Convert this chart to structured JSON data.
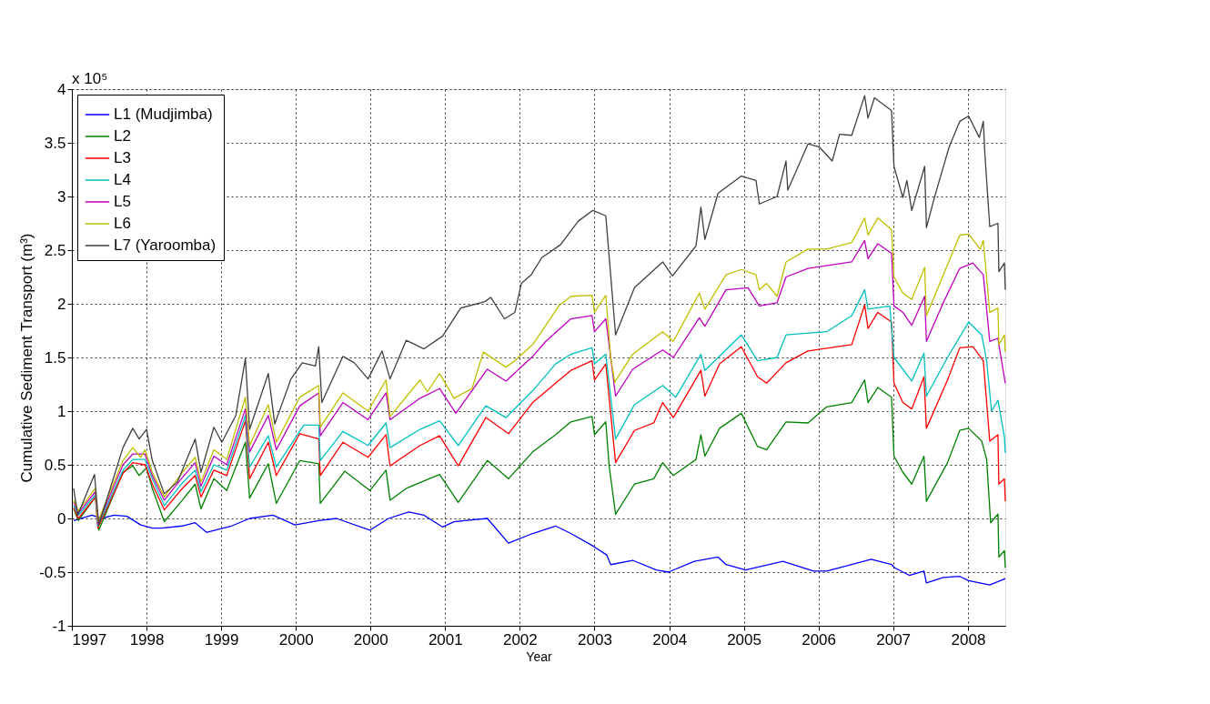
{
  "chart_data": {
    "type": "line",
    "xlabel": "Year",
    "ylabel": "Cumulative Sediment Transport (m³)",
    "annotations": [
      "x 10⁵"
    ],
    "xlim": [
      "1997-04-13",
      "2008-10-13"
    ],
    "xticks": [
      {
        "value": "1997-04-13",
        "label": "1997"
      },
      {
        "value": "1998-03-15",
        "label": "1998"
      },
      {
        "value": "1999-02-14",
        "label": "1999"
      },
      {
        "value": "2000-01-16",
        "label": "2000"
      },
      {
        "value": "2000-12-17",
        "label": "2000"
      },
      {
        "value": "2001-11-18",
        "label": "2001"
      },
      {
        "value": "2002-10-20",
        "label": "2002"
      },
      {
        "value": "2003-09-21",
        "label": "2003"
      },
      {
        "value": "2004-08-23",
        "label": "2004"
      },
      {
        "value": "2005-07-24",
        "label": "2005"
      },
      {
        "value": "2006-06-25",
        "label": "2006"
      },
      {
        "value": "2007-05-27",
        "label": "2007"
      },
      {
        "value": "2008-04-28",
        "label": "2008"
      }
    ],
    "ylim": [
      -1,
      4
    ],
    "yticks": [
      -1,
      -0.5,
      0,
      0.5,
      1,
      1.5,
      2,
      2.5,
      3,
      3.5,
      4
    ],
    "grid": true,
    "legend": "top left",
    "marker": "none",
    "line_style": "solid",
    "series": [
      {
        "name": "L1 (Mudjimba)",
        "color": "#0000ff",
        "x": [
          "1997-04-21",
          "1997-07-13",
          "1997-08-23",
          "1997-10-20",
          "1997-12-17",
          "1998-02-17",
          "1998-04-10",
          "1998-05-23",
          "1998-08-23",
          "1998-10-20",
          "1998-12-10",
          "1999-02-03",
          "1999-04-02",
          "1999-06-22",
          "1999-10-05",
          "2000-01-12",
          "2000-04-28",
          "2000-07-17",
          "2000-12-14",
          "2001-03-08",
          "2001-06-07",
          "2001-08-15",
          "2001-11-07",
          "2001-12-28",
          "2002-05-27",
          "2002-08-30",
          "2002-12-17",
          "2003-03-30",
          "2003-06-07",
          "2003-09-17",
          "2003-11-15",
          "2003-12-03",
          "2004-03-11",
          "2004-06-25",
          "2004-08-19",
          "2004-12-14",
          "2005-03-30",
          "2005-05-05",
          "2005-08-01",
          "2006-01-16",
          "2006-06-03",
          "2006-08-01",
          "2006-11-22",
          "2007-02-17",
          "2007-05-20",
          "2007-06-03",
          "2007-08-08",
          "2007-10-13",
          "2007-10-24",
          "2008-01-08",
          "2008-03-22",
          "2008-05-01",
          "2008-08-04",
          "2008-10-13"
        ],
        "values": [
          -0.02,
          0.03,
          0.0,
          0.03,
          0.02,
          -0.06,
          -0.09,
          -0.09,
          -0.07,
          -0.04,
          -0.13,
          -0.1,
          -0.07,
          0.0,
          0.03,
          -0.06,
          -0.02,
          0.0,
          -0.11,
          0.0,
          0.06,
          0.03,
          -0.08,
          -0.03,
          0.0,
          -0.23,
          -0.14,
          -0.07,
          -0.14,
          -0.26,
          -0.34,
          -0.43,
          -0.39,
          -0.48,
          -0.5,
          -0.4,
          -0.36,
          -0.43,
          -0.48,
          -0.4,
          -0.49,
          -0.49,
          -0.43,
          -0.38,
          -0.43,
          -0.46,
          -0.53,
          -0.49,
          -0.6,
          -0.55,
          -0.54,
          -0.58,
          -0.62,
          -0.56
        ]
      },
      {
        "name": "L2",
        "color": "#008000",
        "x": [
          "1997-04-21",
          "1997-05-12",
          "1997-07-28",
          "1997-08-12",
          "1997-11-29",
          "1998-01-12",
          "1998-02-10",
          "1998-03-15",
          "1998-04-10",
          "1998-06-03",
          "1998-08-23",
          "1998-10-20",
          "1998-11-15",
          "1999-01-12",
          "1999-03-11",
          "1999-06-03",
          "1999-06-22",
          "1999-09-14",
          "1999-10-20",
          "2000-02-03",
          "2000-04-28",
          "2000-05-05",
          "2000-08-23",
          "2000-12-14",
          "2001-02-25",
          "2001-03-15",
          "2001-05-27",
          "2001-10-24",
          "2002-01-16",
          "2002-05-27",
          "2002-08-30",
          "2002-12-17",
          "2003-03-30",
          "2003-06-07",
          "2003-09-10",
          "2003-09-21",
          "2003-11-11",
          "2003-11-26",
          "2003-12-25",
          "2004-03-19",
          "2004-06-14",
          "2004-07-24",
          "2004-09-10",
          "2004-12-21",
          "2005-01-12",
          "2005-01-30",
          "2005-04-06",
          "2005-07-13",
          "2005-09-24",
          "2005-11-04",
          "2006-01-30",
          "2006-05-09",
          "2006-08-01",
          "2006-11-22",
          "2007-01-19",
          "2007-02-03",
          "2007-03-19",
          "2007-05-20",
          "2007-05-31",
          "2007-07-10",
          "2007-08-19",
          "2007-10-13",
          "2007-10-24",
          "2008-01-27",
          "2008-03-22",
          "2008-05-01",
          "2008-06-29",
          "2008-07-21",
          "2008-08-08",
          "2008-09-10",
          "2008-09-14",
          "2008-10-09",
          "2008-10-13"
        ],
        "values": [
          0.09,
          -0.02,
          0.2,
          -0.11,
          0.43,
          0.49,
          0.4,
          0.47,
          0.28,
          -0.03,
          0.17,
          0.32,
          0.09,
          0.37,
          0.26,
          0.71,
          0.19,
          0.51,
          0.14,
          0.54,
          0.51,
          0.14,
          0.44,
          0.26,
          0.45,
          0.17,
          0.28,
          0.41,
          0.15,
          0.54,
          0.37,
          0.62,
          0.78,
          0.9,
          0.95,
          0.78,
          0.9,
          0.49,
          0.04,
          0.32,
          0.37,
          0.52,
          0.4,
          0.55,
          0.78,
          0.58,
          0.84,
          0.98,
          0.67,
          0.64,
          0.9,
          0.89,
          1.04,
          1.08,
          1.29,
          1.08,
          1.22,
          1.13,
          0.58,
          0.43,
          0.32,
          0.58,
          0.16,
          0.52,
          0.82,
          0.84,
          0.72,
          0.55,
          -0.04,
          0.04,
          -0.36,
          -0.3,
          -0.46
        ]
      },
      {
        "name": "L3",
        "color": "#ff0000",
        "x": [
          "1997-04-21",
          "1997-05-12",
          "1997-07-28",
          "1997-08-08",
          "1997-11-29",
          "1998-01-12",
          "1998-03-08",
          "1998-04-10",
          "1998-06-03",
          "1998-08-23",
          "1998-10-20",
          "1998-11-15",
          "1999-01-12",
          "1999-03-11",
          "1999-06-03",
          "1999-06-22",
          "1999-09-14",
          "1999-10-20",
          "2000-02-03",
          "2000-04-28",
          "2000-05-05",
          "2000-08-15",
          "2000-12-06",
          "2001-02-25",
          "2001-03-15",
          "2001-07-28",
          "2001-10-24",
          "2002-01-16",
          "2002-05-20",
          "2002-08-30",
          "2002-12-17",
          "2003-03-30",
          "2003-06-07",
          "2003-09-10",
          "2003-09-21",
          "2003-11-11",
          "2003-12-25",
          "2004-03-19",
          "2004-06-14",
          "2004-07-24",
          "2004-09-10",
          "2005-01-12",
          "2005-01-30",
          "2005-04-06",
          "2005-07-13",
          "2005-09-24",
          "2005-11-04",
          "2006-01-30",
          "2006-05-09",
          "2006-11-22",
          "2007-01-19",
          "2007-02-03",
          "2007-03-19",
          "2007-05-20",
          "2007-05-31",
          "2007-07-10",
          "2007-08-19",
          "2007-10-13",
          "2007-10-24",
          "2008-01-27",
          "2008-03-22",
          "2008-05-20",
          "2008-07-06",
          "2008-08-04",
          "2008-09-10",
          "2008-09-14",
          "2008-10-09",
          "2008-10-13"
        ],
        "values": [
          0.1,
          0.0,
          0.2,
          -0.09,
          0.42,
          0.52,
          0.5,
          0.32,
          0.08,
          0.28,
          0.4,
          0.2,
          0.45,
          0.4,
          0.91,
          0.37,
          0.71,
          0.4,
          0.79,
          0.74,
          0.4,
          0.71,
          0.57,
          0.78,
          0.49,
          0.68,
          0.77,
          0.49,
          0.94,
          0.79,
          1.08,
          1.26,
          1.38,
          1.47,
          1.29,
          1.44,
          0.52,
          0.82,
          0.89,
          1.08,
          0.94,
          1.38,
          1.14,
          1.44,
          1.6,
          1.32,
          1.26,
          1.45,
          1.56,
          1.62,
          1.99,
          1.77,
          1.92,
          1.83,
          1.26,
          1.08,
          1.02,
          1.32,
          0.84,
          1.29,
          1.59,
          1.6,
          1.47,
          0.72,
          0.78,
          0.32,
          0.37,
          0.16
        ]
      },
      {
        "name": "L4",
        "color": "#00bfbf",
        "x": [
          "1997-04-21",
          "1997-05-12",
          "1997-07-28",
          "1997-08-08",
          "1997-11-29",
          "1998-01-12",
          "1998-03-08",
          "1998-04-10",
          "1998-06-03",
          "1998-08-23",
          "1998-10-20",
          "1998-11-15",
          "1999-01-12",
          "1999-03-11",
          "1999-06-03",
          "1999-06-22",
          "1999-09-14",
          "1999-10-20",
          "2000-02-21",
          "2000-04-28",
          "2000-05-05",
          "2000-08-15",
          "2000-12-06",
          "2001-02-25",
          "2001-03-15",
          "2001-07-28",
          "2001-10-24",
          "2002-01-16",
          "2002-05-20",
          "2002-08-19",
          "2002-12-17",
          "2003-03-30",
          "2003-06-07",
          "2003-09-10",
          "2003-09-21",
          "2003-11-11",
          "2003-12-25",
          "2004-03-19",
          "2004-07-24",
          "2004-09-21",
          "2005-01-12",
          "2005-01-30",
          "2005-07-13",
          "2005-09-24",
          "2005-12-21",
          "2006-01-30",
          "2006-08-01",
          "2006-11-22",
          "2007-01-19",
          "2007-02-03",
          "2007-05-12",
          "2007-05-31",
          "2007-08-19",
          "2007-10-13",
          "2007-10-24",
          "2008-01-27",
          "2008-05-01",
          "2008-06-29",
          "2008-07-21",
          "2008-08-12",
          "2008-09-10",
          "2008-10-09",
          "2008-10-13"
        ],
        "values": [
          0.12,
          0.03,
          0.22,
          -0.07,
          0.45,
          0.55,
          0.55,
          0.37,
          0.12,
          0.33,
          0.45,
          0.25,
          0.5,
          0.45,
          0.96,
          0.48,
          0.77,
          0.48,
          0.87,
          0.87,
          0.54,
          0.81,
          0.68,
          0.89,
          0.66,
          0.83,
          0.91,
          0.68,
          1.05,
          0.94,
          1.19,
          1.44,
          1.53,
          1.59,
          1.44,
          1.53,
          0.74,
          1.06,
          1.24,
          1.13,
          1.53,
          1.38,
          1.71,
          1.47,
          1.5,
          1.71,
          1.74,
          1.89,
          2.13,
          1.95,
          1.98,
          1.5,
          1.28,
          1.54,
          1.14,
          1.5,
          1.83,
          1.71,
          1.47,
          1.0,
          1.1,
          0.76,
          0.61
        ]
      },
      {
        "name": "L5",
        "color": "#bf00bf",
        "x": [
          "1997-04-21",
          "1997-05-12",
          "1997-07-28",
          "1997-08-08",
          "1997-11-29",
          "1998-01-12",
          "1998-03-08",
          "1998-04-10",
          "1998-06-03",
          "1998-08-23",
          "1998-10-20",
          "1998-11-15",
          "1999-01-12",
          "1999-03-11",
          "1999-06-03",
          "1999-06-22",
          "1999-09-14",
          "1999-10-20",
          "2000-02-03",
          "2000-04-28",
          "2000-05-05",
          "2000-08-15",
          "2000-12-06",
          "2001-02-25",
          "2001-03-15",
          "2001-07-28",
          "2001-10-24",
          "2002-01-05",
          "2002-05-27",
          "2002-08-19",
          "2002-12-17",
          "2003-02-14",
          "2003-06-07",
          "2003-09-10",
          "2003-09-21",
          "2003-11-11",
          "2003-12-25",
          "2004-03-11",
          "2004-07-24",
          "2004-09-10",
          "2005-01-05",
          "2005-01-30",
          "2005-05-05",
          "2005-08-12",
          "2005-10-02",
          "2005-12-21",
          "2006-01-30",
          "2006-05-09",
          "2006-11-22",
          "2007-01-19",
          "2007-02-03",
          "2007-03-19",
          "2007-05-20",
          "2007-05-31",
          "2007-07-10",
          "2007-08-19",
          "2007-10-16",
          "2007-10-24",
          "2008-01-08",
          "2008-03-22",
          "2008-05-20",
          "2008-07-06",
          "2008-08-04",
          "2008-09-10",
          "2008-09-14",
          "2008-10-13"
        ],
        "values": [
          0.15,
          0.05,
          0.25,
          -0.05,
          0.5,
          0.6,
          0.6,
          0.4,
          0.17,
          0.38,
          0.52,
          0.3,
          0.58,
          0.5,
          1.02,
          0.62,
          0.96,
          0.64,
          1.05,
          1.17,
          0.77,
          1.08,
          0.92,
          1.17,
          0.92,
          1.12,
          1.21,
          0.98,
          1.39,
          1.28,
          1.51,
          1.65,
          1.86,
          1.89,
          1.74,
          1.86,
          1.14,
          1.39,
          1.57,
          1.5,
          1.87,
          1.79,
          2.13,
          2.15,
          1.98,
          2.01,
          2.25,
          2.33,
          2.39,
          2.59,
          2.42,
          2.56,
          2.47,
          1.98,
          1.92,
          1.8,
          2.07,
          1.65,
          2.01,
          2.33,
          2.38,
          2.27,
          1.65,
          1.68,
          1.62,
          1.26
        ]
      },
      {
        "name": "L6",
        "color": "#bfbf00",
        "x": [
          "1997-04-21",
          "1997-05-12",
          "1997-07-28",
          "1997-08-08",
          "1997-11-29",
          "1998-01-12",
          "1998-02-17",
          "1998-03-08",
          "1998-04-10",
          "1998-06-03",
          "1998-08-23",
          "1998-10-20",
          "1998-11-15",
          "1999-01-12",
          "1999-03-11",
          "1999-06-03",
          "1999-06-22",
          "1999-09-14",
          "1999-10-20",
          "2000-02-03",
          "2000-04-28",
          "2000-05-05",
          "2000-08-15",
          "2000-12-06",
          "2001-02-25",
          "2001-03-15",
          "2001-07-28",
          "2001-08-30",
          "2001-10-24",
          "2001-12-28",
          "2002-03-19",
          "2002-05-09",
          "2002-08-19",
          "2002-09-28",
          "2002-12-17",
          "2003-02-14",
          "2003-04-13",
          "2003-06-07",
          "2003-09-10",
          "2003-09-21",
          "2003-11-11",
          "2003-12-03",
          "2003-12-21",
          "2004-03-11",
          "2004-07-24",
          "2004-09-10",
          "2005-01-05",
          "2005-01-30",
          "2005-05-05",
          "2005-07-13",
          "2005-09-17",
          "2005-10-02",
          "2005-11-04",
          "2005-12-21",
          "2006-01-30",
          "2006-05-09",
          "2006-08-01",
          "2006-11-22",
          "2007-01-19",
          "2007-02-03",
          "2007-03-19",
          "2007-05-20",
          "2007-05-31",
          "2007-07-10",
          "2007-08-19",
          "2007-10-16",
          "2007-10-24",
          "2008-01-08",
          "2008-03-22",
          "2008-05-01",
          "2008-06-22",
          "2008-07-06",
          "2008-08-04",
          "2008-09-10",
          "2008-09-14",
          "2008-10-09",
          "2008-10-13"
        ],
        "values": [
          0.17,
          0.07,
          0.28,
          -0.03,
          0.54,
          0.66,
          0.57,
          0.64,
          0.43,
          0.2,
          0.43,
          0.57,
          0.34,
          0.64,
          0.55,
          1.13,
          0.68,
          1.06,
          0.71,
          1.13,
          1.24,
          0.85,
          1.17,
          1.0,
          1.29,
          0.95,
          1.29,
          1.18,
          1.35,
          1.12,
          1.21,
          1.55,
          1.41,
          1.47,
          1.62,
          1.8,
          1.98,
          2.07,
          2.08,
          1.92,
          2.08,
          1.5,
          1.27,
          1.53,
          1.74,
          1.65,
          2.1,
          1.95,
          2.27,
          2.32,
          2.27,
          2.13,
          2.19,
          2.07,
          2.39,
          2.51,
          2.51,
          2.57,
          2.8,
          2.64,
          2.8,
          2.69,
          2.25,
          2.1,
          2.04,
          2.34,
          1.89,
          2.27,
          2.64,
          2.65,
          2.51,
          2.59,
          1.92,
          1.96,
          1.62,
          1.71,
          1.55
        ]
      },
      {
        "name": "L7 (Yaroomba)",
        "color": "#404040",
        "x": [
          "1997-04-21",
          "1997-05-09",
          "1997-07-24",
          "1997-08-12",
          "1997-11-29",
          "1998-01-12",
          "1998-02-10",
          "1998-03-15",
          "1998-04-10",
          "1998-06-03",
          "1998-08-01",
          "1998-10-20",
          "1998-11-15",
          "1999-01-12",
          "1999-02-17",
          "1999-04-21",
          "1999-06-03",
          "1999-06-22",
          "1999-09-14",
          "1999-10-13",
          "1999-12-25",
          "2000-02-14",
          "2000-04-13",
          "2000-04-28",
          "2000-05-12",
          "2000-08-15",
          "2000-10-05",
          "2000-12-06",
          "2001-02-07",
          "2001-03-15",
          "2001-05-27",
          "2001-08-15",
          "2001-11-07",
          "2002-01-27",
          "2002-05-16",
          "2002-06-11",
          "2002-08-12",
          "2002-09-28",
          "2002-10-27",
          "2002-12-10",
          "2003-01-27",
          "2003-04-21",
          "2003-07-10",
          "2003-09-14",
          "2003-11-11",
          "2003-12-25",
          "2004-03-19",
          "2004-07-24",
          "2004-09-06",
          "2004-12-21",
          "2005-01-12",
          "2005-01-30",
          "2005-03-30",
          "2005-07-13",
          "2005-09-17",
          "2005-10-02",
          "2005-12-21",
          "2006-01-30",
          "2006-02-07",
          "2006-05-09",
          "2006-06-29",
          "2006-08-26",
          "2006-09-28",
          "2006-11-22",
          "2007-01-19",
          "2007-02-03",
          "2007-03-04",
          "2007-05-20",
          "2007-05-31",
          "2007-07-10",
          "2007-07-28",
          "2007-08-19",
          "2007-10-16",
          "2007-10-24",
          "2007-11-29",
          "2008-02-03",
          "2008-03-22",
          "2008-05-01",
          "2008-06-18",
          "2008-07-06",
          "2008-07-13",
          "2008-08-04",
          "2008-09-10",
          "2008-09-14",
          "2008-10-09",
          "2008-10-13"
        ],
        "values": [
          0.28,
          0.03,
          0.41,
          -0.06,
          0.66,
          0.84,
          0.74,
          0.83,
          0.54,
          0.23,
          0.34,
          0.74,
          0.43,
          0.85,
          0.71,
          0.96,
          1.49,
          0.83,
          1.35,
          0.88,
          1.3,
          1.45,
          1.42,
          1.6,
          1.08,
          1.51,
          1.45,
          1.3,
          1.56,
          1.3,
          1.66,
          1.58,
          1.7,
          1.96,
          2.02,
          2.06,
          1.86,
          1.92,
          2.19,
          2.27,
          2.43,
          2.55,
          2.77,
          2.87,
          2.82,
          1.71,
          2.15,
          2.39,
          2.26,
          2.54,
          2.9,
          2.6,
          3.03,
          3.19,
          3.15,
          2.93,
          3.0,
          3.33,
          3.06,
          3.49,
          3.46,
          3.33,
          3.58,
          3.57,
          3.94,
          3.73,
          3.92,
          3.8,
          3.28,
          2.99,
          3.15,
          2.87,
          3.28,
          2.71,
          2.99,
          3.46,
          3.7,
          3.75,
          3.55,
          3.7,
          3.4,
          2.72,
          2.75,
          2.3,
          2.38,
          2.13
        ]
      }
    ]
  }
}
